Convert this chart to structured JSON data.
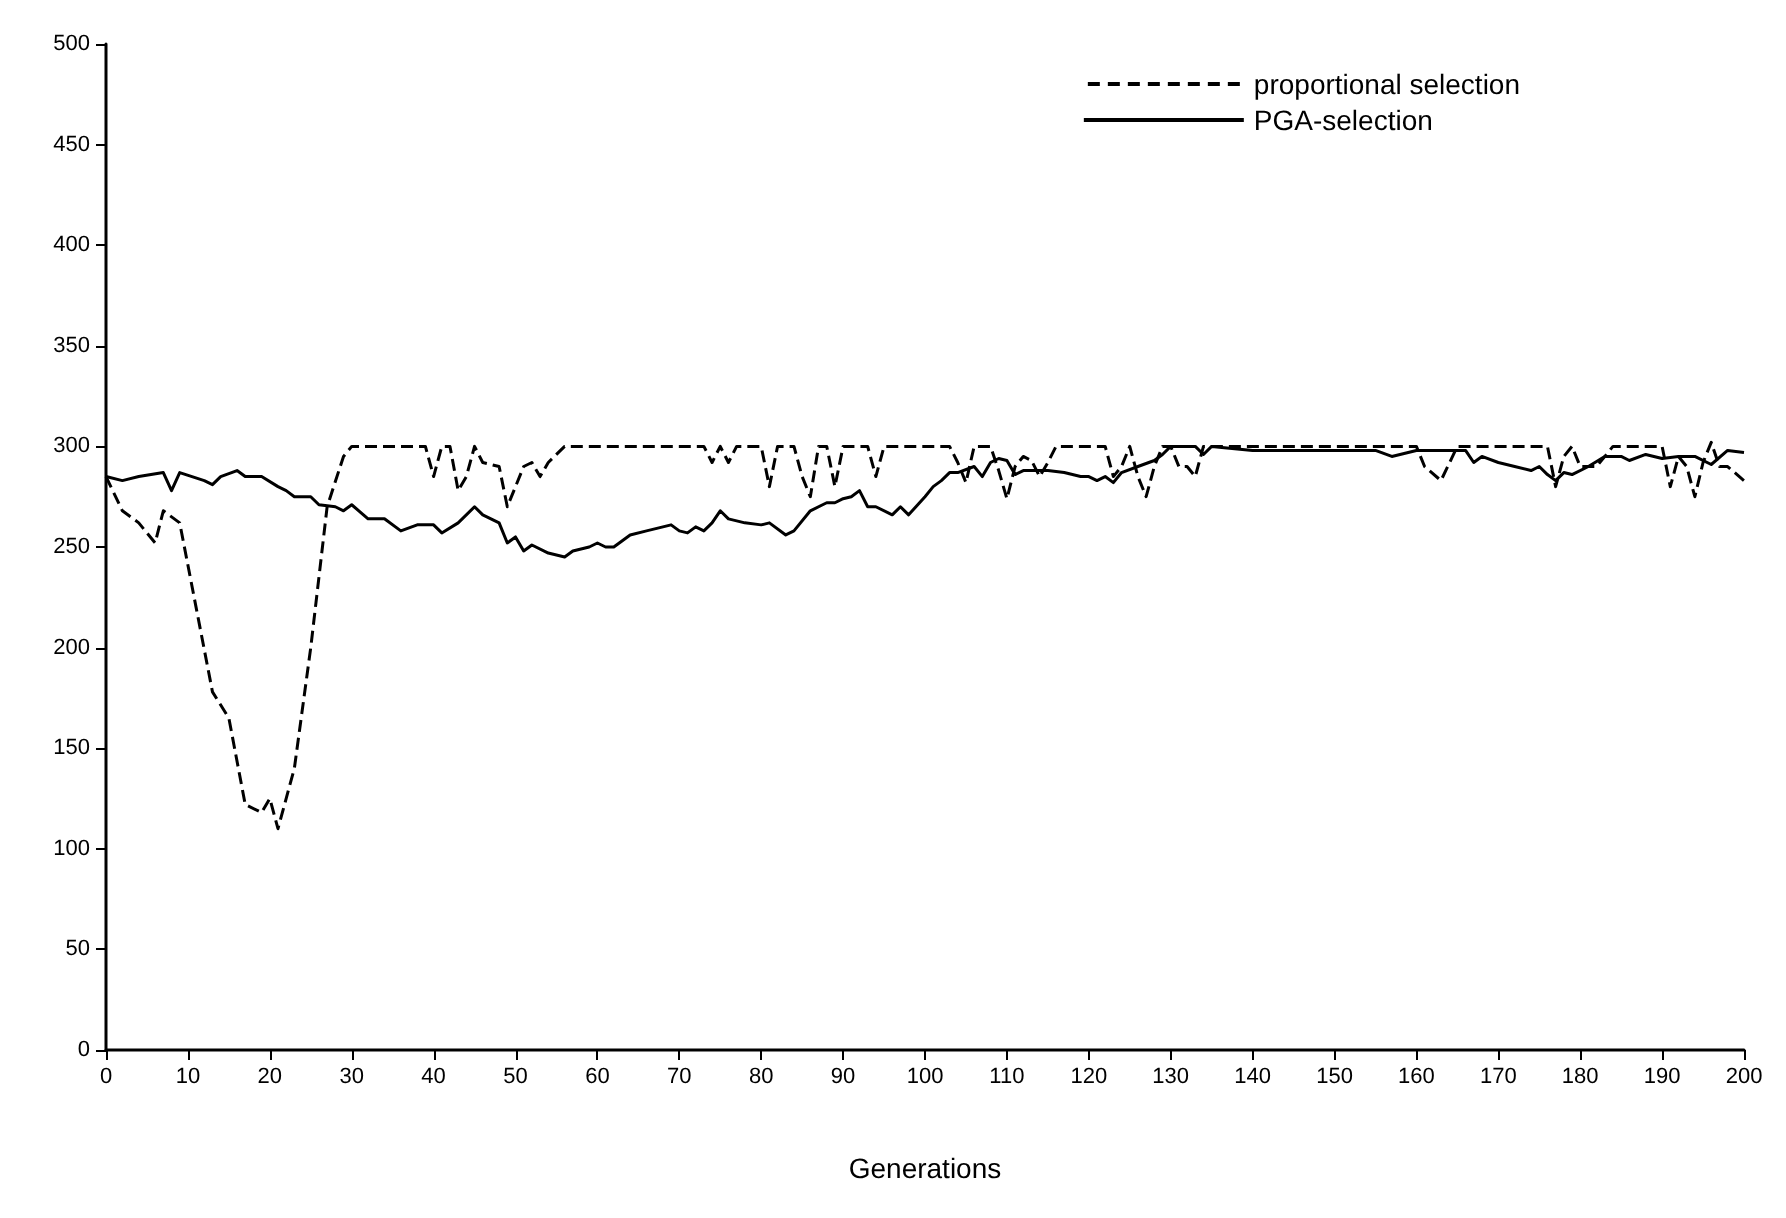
{
  "chart_data": {
    "type": "line",
    "xlabel": "Generations",
    "xlim": [
      0,
      200
    ],
    "xticks": [
      0,
      10,
      20,
      30,
      40,
      50,
      60,
      70,
      80,
      90,
      100,
      110,
      120,
      130,
      140,
      150,
      160,
      170,
      180,
      190,
      200
    ],
    "ylim": [
      0,
      500
    ],
    "yticks": [
      0,
      50,
      100,
      150,
      200,
      250,
      300,
      350,
      400,
      450,
      500
    ],
    "grid": false,
    "legend": "top right",
    "marker": "none",
    "series": [
      {
        "name": "proportional selection",
        "color": "#000000",
        "line_style": "dashed",
        "x": [
          0,
          2,
          4,
          6,
          7,
          9,
          11,
          13,
          15,
          17,
          19,
          20,
          21,
          23,
          25,
          27,
          29,
          30,
          39,
          40,
          41,
          42,
          43,
          44,
          45,
          46,
          48,
          49,
          51,
          52,
          53,
          54,
          56,
          73,
          74,
          75,
          76,
          77,
          80,
          81,
          82,
          84,
          85,
          86,
          87,
          88,
          89,
          90,
          93,
          94,
          95,
          103,
          104,
          105,
          106,
          108,
          109,
          110,
          111,
          112,
          113,
          114,
          115,
          116,
          122,
          123,
          124,
          125,
          126,
          127,
          128,
          129,
          130,
          131,
          132,
          133,
          134,
          137,
          160,
          161,
          163,
          165,
          176,
          177,
          178,
          179,
          180,
          182,
          184,
          190,
          191,
          192,
          193,
          194,
          195,
          196,
          197,
          198,
          200
        ],
        "values": [
          285,
          268,
          262,
          252,
          268,
          262,
          220,
          178,
          165,
          122,
          118,
          125,
          110,
          140,
          200,
          270,
          295,
          300,
          300,
          285,
          300,
          300,
          278,
          285,
          300,
          292,
          290,
          270,
          290,
          292,
          285,
          292,
          300,
          300,
          292,
          300,
          292,
          300,
          300,
          280,
          300,
          300,
          285,
          275,
          300,
          300,
          280,
          300,
          300,
          285,
          300,
          300,
          292,
          282,
          300,
          300,
          288,
          274,
          290,
          295,
          293,
          285,
          292,
          300,
          300,
          285,
          290,
          300,
          285,
          275,
          290,
          300,
          300,
          290,
          290,
          285,
          300,
          300,
          300,
          290,
          283,
          300,
          300,
          280,
          295,
          300,
          290,
          290,
          300,
          300,
          280,
          295,
          290,
          275,
          292,
          302,
          290,
          290,
          283
        ]
      },
      {
        "name": "PGA-selection",
        "color": "#000000",
        "line_style": "solid",
        "x": [
          0,
          2,
          4,
          7,
          8,
          9,
          12,
          13,
          14,
          16,
          17,
          19,
          21,
          22,
          23,
          25,
          26,
          28,
          29,
          30,
          32,
          34,
          36,
          38,
          40,
          41,
          43,
          45,
          46,
          48,
          49,
          50,
          51,
          52,
          54,
          56,
          57,
          59,
          60,
          61,
          62,
          64,
          66,
          68,
          69,
          70,
          71,
          72,
          73,
          74,
          75,
          76,
          78,
          80,
          81,
          83,
          84,
          86,
          88,
          89,
          90,
          91,
          92,
          93,
          94,
          96,
          97,
          98,
          100,
          101,
          102,
          103,
          104,
          106,
          107,
          108,
          109,
          110,
          111,
          112,
          113,
          115,
          117,
          119,
          120,
          121,
          122,
          123,
          124,
          126,
          128,
          129,
          130,
          133,
          134,
          135,
          140,
          150,
          155,
          157,
          159,
          160,
          166,
          167,
          168,
          170,
          172,
          174,
          175,
          176,
          177,
          178,
          179,
          181,
          183,
          185,
          186,
          188,
          190,
          192,
          194,
          196,
          198,
          200
        ],
        "values": [
          285,
          283,
          285,
          287,
          278,
          287,
          283,
          281,
          285,
          288,
          285,
          285,
          280,
          278,
          275,
          275,
          271,
          270,
          268,
          271,
          264,
          264,
          258,
          261,
          261,
          257,
          262,
          270,
          266,
          262,
          252,
          255,
          248,
          251,
          247,
          245,
          248,
          250,
          252,
          250,
          250,
          256,
          258,
          260,
          261,
          258,
          257,
          260,
          258,
          262,
          268,
          264,
          262,
          261,
          262,
          256,
          258,
          268,
          272,
          272,
          274,
          275,
          278,
          270,
          270,
          266,
          270,
          266,
          275,
          280,
          283,
          287,
          287,
          290,
          285,
          292,
          294,
          293,
          286,
          288,
          288,
          288,
          287,
          285,
          285,
          283,
          285,
          282,
          287,
          290,
          293,
          296,
          300,
          300,
          296,
          300,
          298,
          298,
          298,
          295,
          297,
          298,
          298,
          292,
          295,
          292,
          290,
          288,
          290,
          286,
          283,
          287,
          286,
          290,
          295,
          295,
          293,
          296,
          294,
          295,
          295,
          291,
          298,
          297
        ]
      }
    ]
  }
}
